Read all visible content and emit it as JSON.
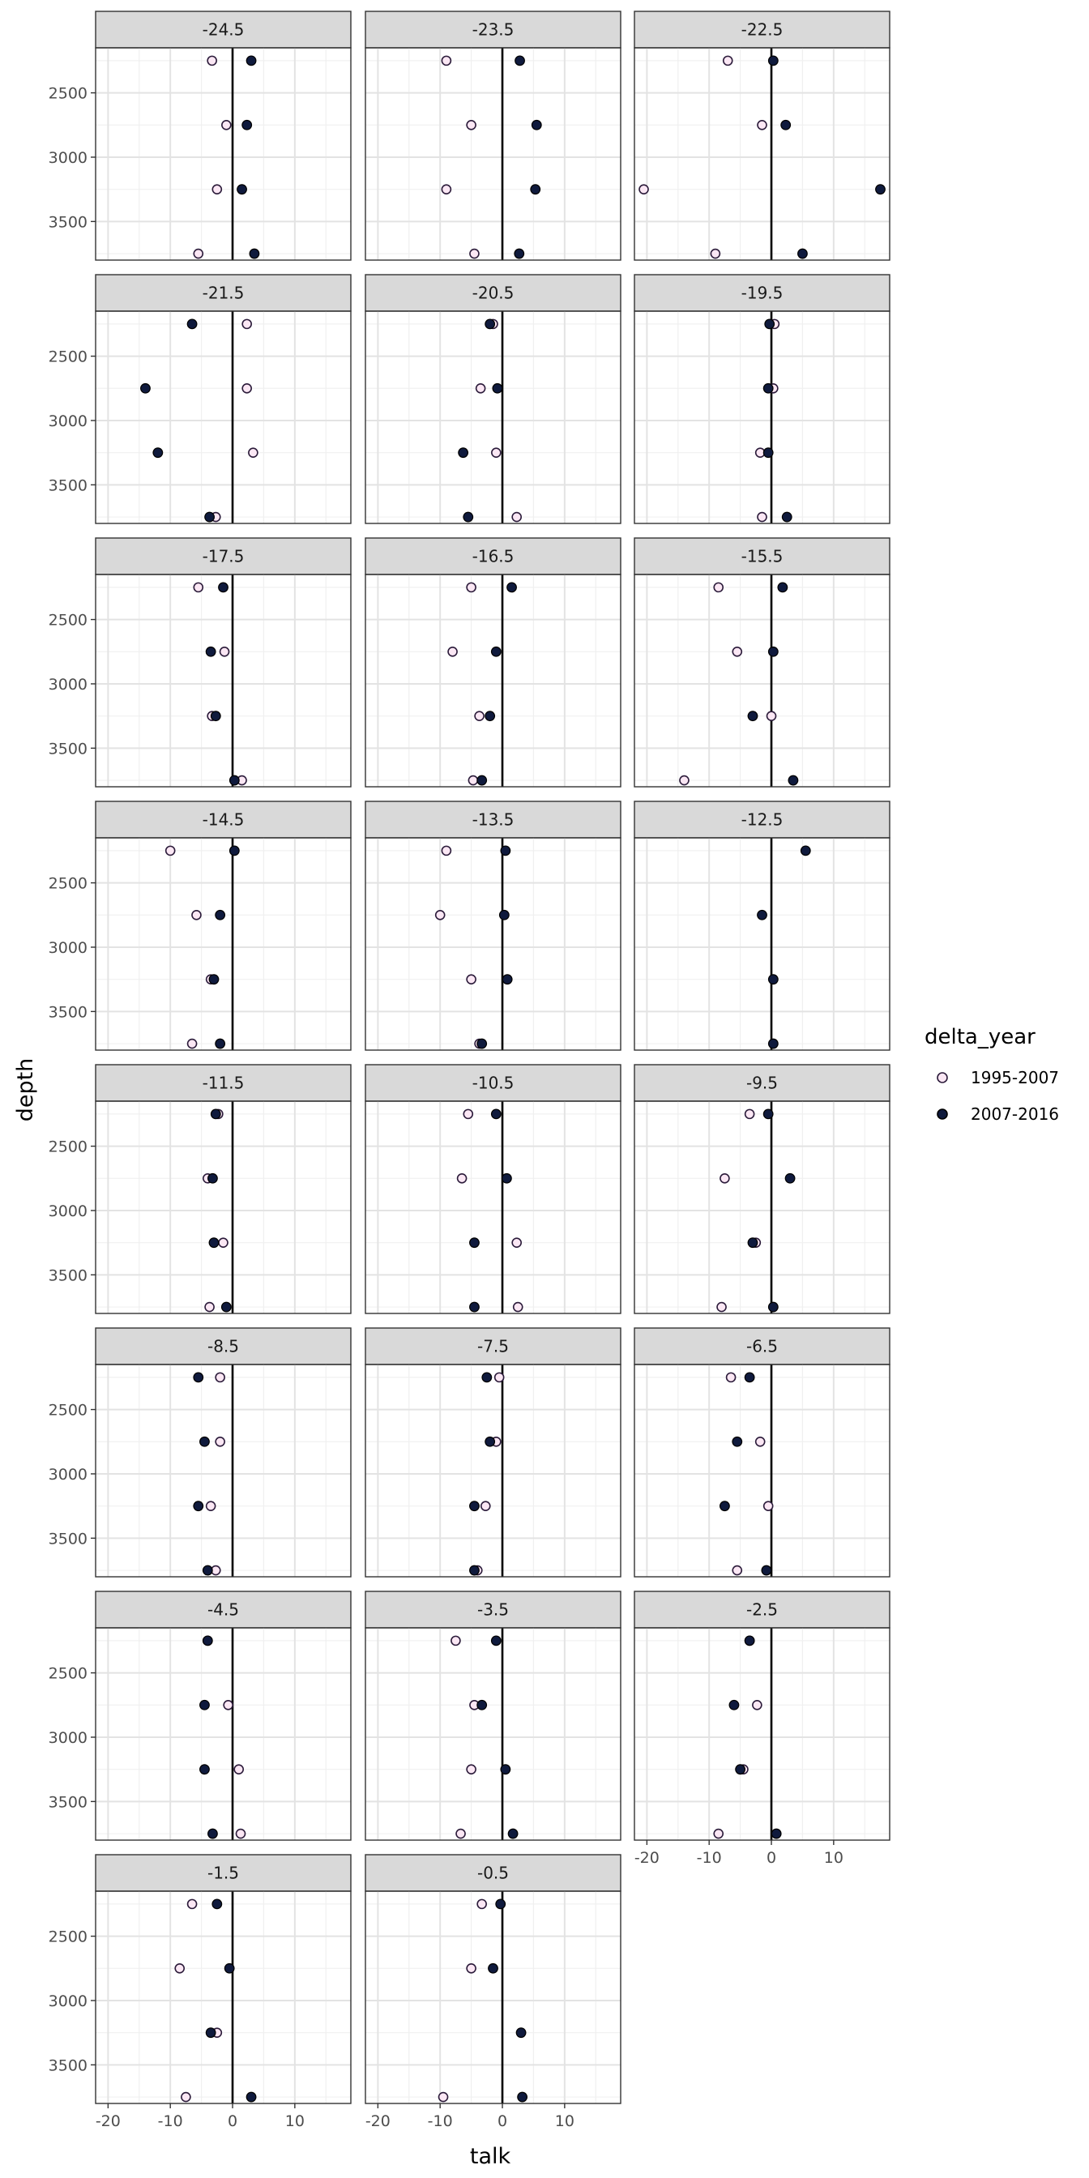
{
  "chart_data": {
    "type": "scatter",
    "facet_by": "lat",
    "xlabel": "talk",
    "ylabel": "depth",
    "xlim": [
      -22,
      19
    ],
    "ylim": [
      3800,
      2150
    ],
    "y_reversed": true,
    "x_ticks": [
      -20,
      -10,
      0,
      10
    ],
    "y_ticks": [
      2500,
      3000,
      3500
    ],
    "vline_x": 0,
    "grid": true,
    "legend": {
      "title": "delta_year",
      "position": "right",
      "entries": [
        {
          "name": "1995-2007",
          "fill": "#fbe7f4",
          "stroke": "#2b1b3a"
        },
        {
          "name": "2007-2016",
          "fill": "#0f1a3d",
          "stroke": "#000000"
        }
      ]
    },
    "depths": [
      2250,
      2750,
      3250,
      3750
    ],
    "facets": [
      {
        "label": "-24.5",
        "s1995": [
          -3.3,
          -1.0,
          -2.5,
          -5.5
        ],
        "s2007": [
          3.0,
          2.3,
          1.5,
          3.5
        ]
      },
      {
        "label": "-23.5",
        "s1995": [
          -9.0,
          -5.0,
          -9.0,
          -4.5
        ],
        "s2007": [
          2.8,
          5.5,
          5.3,
          2.7
        ]
      },
      {
        "label": "-22.5",
        "s1995": [
          -7.0,
          -1.5,
          -20.5,
          -9.0
        ],
        "s2007": [
          0.3,
          2.3,
          17.5,
          5.0
        ]
      },
      {
        "label": "-21.5",
        "s1995": [
          2.3,
          2.3,
          3.3,
          -2.7
        ],
        "s2007": [
          -6.5,
          -14.0,
          -12.0,
          -3.7
        ]
      },
      {
        "label": "-20.5",
        "s1995": [
          -1.5,
          -3.5,
          -1.0,
          2.3
        ],
        "s2007": [
          -2.0,
          -0.8,
          -6.3,
          -5.5
        ]
      },
      {
        "label": "-19.5",
        "s1995": [
          0.5,
          0.3,
          -1.8,
          -1.5
        ],
        "s2007": [
          -0.3,
          -0.5,
          -0.5,
          2.5
        ]
      },
      {
        "label": "-17.5",
        "s1995": [
          -5.5,
          -1.3,
          -3.3,
          1.5
        ],
        "s2007": [
          -1.5,
          -3.5,
          -2.7,
          0.3
        ]
      },
      {
        "label": "-16.5",
        "s1995": [
          -5.0,
          -8.0,
          -3.7,
          -4.7
        ],
        "s2007": [
          1.5,
          -1.0,
          -2.0,
          -3.3
        ]
      },
      {
        "label": "-15.5",
        "s1995": [
          -8.5,
          -5.5,
          0.0,
          -14.0
        ],
        "s2007": [
          1.8,
          0.3,
          -3.0,
          3.5
        ]
      },
      {
        "label": "-14.5",
        "s1995": [
          -10.0,
          -5.8,
          -3.5,
          -6.5
        ],
        "s2007": [
          0.3,
          -2.0,
          -3.0,
          -2.0
        ]
      },
      {
        "label": "-13.5",
        "s1995": [
          -9.0,
          -10.0,
          -5.0,
          -3.7
        ],
        "s2007": [
          0.5,
          0.3,
          0.8,
          -3.3
        ]
      },
      {
        "label": "-12.5",
        "s1995": [],
        "s2007": [
          5.5,
          -1.5,
          0.3,
          0.3
        ]
      },
      {
        "label": "-11.5",
        "s1995": [
          -2.3,
          -4.0,
          -1.5,
          -3.7
        ],
        "s2007": [
          -2.7,
          -3.2,
          -3.0,
          -1.0
        ]
      },
      {
        "label": "-10.5",
        "s1995": [
          -5.5,
          -6.5,
          2.3,
          2.5
        ],
        "s2007": [
          -1.0,
          0.7,
          -4.5,
          -4.5
        ]
      },
      {
        "label": "-9.5",
        "s1995": [
          -3.5,
          -7.5,
          -2.5,
          -8.0
        ],
        "s2007": [
          -0.5,
          3.0,
          -3.0,
          0.3
        ]
      },
      {
        "label": "-8.5",
        "s1995": [
          -2.0,
          -2.0,
          -3.5,
          -2.7
        ],
        "s2007": [
          -5.5,
          -4.5,
          -5.5,
          -4.0
        ]
      },
      {
        "label": "-7.5",
        "s1995": [
          -0.5,
          -1.0,
          -2.7,
          -4.0
        ],
        "s2007": [
          -2.5,
          -2.0,
          -4.5,
          -4.5
        ]
      },
      {
        "label": "-6.5",
        "s1995": [
          -6.5,
          -1.8,
          -0.5,
          -5.5
        ],
        "s2007": [
          -3.5,
          -5.5,
          -7.5,
          -0.8
        ]
      },
      {
        "label": "-4.5",
        "s1995": [
          -4.0,
          -0.7,
          1.0,
          1.3
        ],
        "s2007": [
          -4.0,
          -4.5,
          -4.5,
          -3.2
        ]
      },
      {
        "label": "-3.5",
        "s1995": [
          -7.5,
          -4.5,
          -5.0,
          -6.7
        ],
        "s2007": [
          -1.0,
          -3.3,
          0.5,
          1.7
        ]
      },
      {
        "label": "-2.5",
        "s1995": [
          -3.5,
          -2.3,
          -4.5,
          -8.5
        ],
        "s2007": [
          -3.5,
          -6.0,
          -5.0,
          0.8
        ]
      },
      {
        "label": "-1.5",
        "s1995": [
          -6.5,
          -8.5,
          -2.5,
          -7.5
        ],
        "s2007": [
          -2.5,
          -0.5,
          -3.5,
          3.0
        ]
      },
      {
        "label": "-0.5",
        "s1995": [
          -3.3,
          -5.0,
          null,
          -9.5
        ],
        "s2007": [
          -0.3,
          -1.5,
          3.0,
          3.2
        ]
      }
    ]
  }
}
